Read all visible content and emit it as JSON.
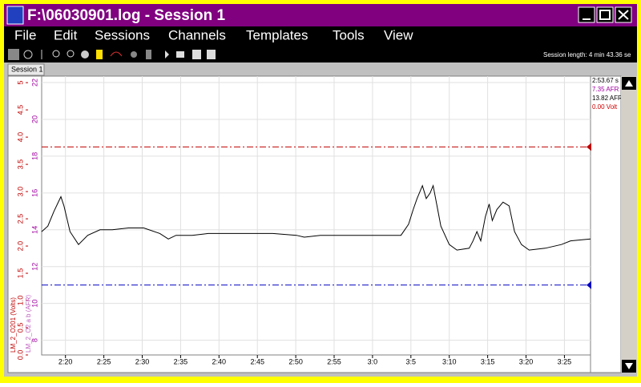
{
  "window": {
    "title": "F:\\06030901.log - Session 1"
  },
  "menu": [
    "File",
    "Edit",
    "Sessions",
    "Channels",
    "Templates",
    "Tools",
    "View"
  ],
  "toolbar": {
    "session_length": "Session length: 4 min 43.36 se"
  },
  "tab": "Session 1",
  "readout": [
    "2:53.67 s",
    "7.35 AFR",
    "13.82 AFR",
    "0.00 Volt"
  ],
  "chart_data": {
    "type": "line",
    "y_label": "LM_2_O2 a b (AFR)",
    "y2_label": "LM_2_O201 (Volts)",
    "x": [
      136.9,
      137.7,
      138.5,
      139.4,
      139.8,
      140.6,
      141.7,
      142.9,
      144.5,
      146.1,
      148.2,
      150.2,
      152.3,
      153.4,
      154.4,
      156.5,
      158.6,
      162.8,
      167.0,
      170.1,
      171.1,
      173.2,
      177.4,
      181.6,
      183.7,
      184.7,
      185.3,
      185.8,
      186.5,
      187.0,
      187.5,
      187.9,
      188.4,
      188.9,
      190.0,
      191.0,
      192.6,
      193.1,
      193.6,
      194.1,
      194.7,
      195.2,
      195.6,
      196.2,
      197.0,
      197.8,
      198.5,
      199.4,
      200.4,
      202.5,
      204.6,
      205.8,
      208.4
    ],
    "values": [
      13.9,
      14.2,
      15.0,
      15.8,
      15.3,
      13.9,
      13.2,
      13.7,
      14.0,
      14.0,
      14.1,
      14.1,
      13.8,
      13.5,
      13.7,
      13.7,
      13.8,
      13.8,
      13.8,
      13.7,
      13.6,
      13.7,
      13.7,
      13.7,
      13.7,
      14.3,
      15.1,
      15.7,
      16.4,
      15.7,
      16.0,
      16.4,
      15.3,
      14.2,
      13.2,
      12.9,
      13.0,
      13.4,
      13.9,
      13.4,
      14.7,
      15.4,
      14.5,
      15.1,
      15.5,
      15.3,
      13.9,
      13.2,
      12.9,
      13.0,
      13.2,
      13.4,
      13.5
    ],
    "color": "#000000",
    "xlim": [
      136.9,
      208.4
    ],
    "xticks": [
      {
        "value": 140,
        "label": "2:20"
      },
      {
        "value": 145,
        "label": "2:25"
      },
      {
        "value": 150,
        "label": "2:30"
      },
      {
        "value": 155,
        "label": "2:35"
      },
      {
        "value": 160,
        "label": "2:40"
      },
      {
        "value": 165,
        "label": "2:45"
      },
      {
        "value": 170,
        "label": "2:50"
      },
      {
        "value": 175,
        "label": "2:55"
      },
      {
        "value": 180,
        "label": "3:0"
      },
      {
        "value": 185,
        "label": "3:5"
      },
      {
        "value": 190,
        "label": "3:10"
      },
      {
        "value": 195,
        "label": "3:15"
      },
      {
        "value": 200,
        "label": "3:20"
      },
      {
        "value": 205,
        "label": "3:25"
      }
    ],
    "ylim": [
      7.2,
      22.35
    ],
    "yticks": [
      8,
      10,
      12,
      14,
      16,
      18,
      20,
      22
    ],
    "y2lim": [
      0,
      5.12
    ],
    "y2ticks": [
      {
        "value": 0,
        "label": "0.0"
      },
      {
        "value": 0.5,
        "label": "0.5"
      },
      {
        "value": 1,
        "label": "1.0"
      },
      {
        "value": 1.5,
        "label": "1.5"
      },
      {
        "value": 2,
        "label": "2.0"
      },
      {
        "value": 2.5,
        "label": "2.5"
      },
      {
        "value": 3,
        "label": "3.0"
      },
      {
        "value": 3.5,
        "label": "3.5"
      },
      {
        "value": 4,
        "label": "4.0"
      },
      {
        "value": 4.5,
        "label": "4.5"
      },
      5
    ],
    "reference_lines": [
      {
        "value": 18.5,
        "color": "#c00000"
      },
      {
        "value": 11.0,
        "color": "#0000c0"
      }
    ],
    "grid": true
  }
}
